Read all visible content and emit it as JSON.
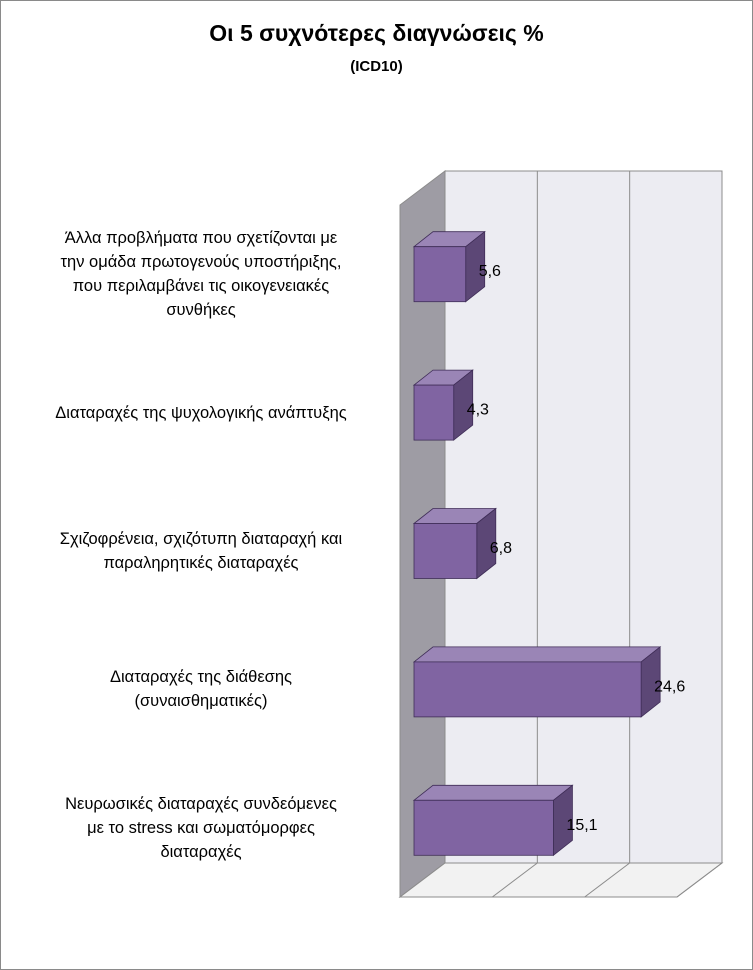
{
  "title": "Οι 5 συχνότερες διαγνώσεις %",
  "subtitle": "(ICD10)",
  "colors": {
    "bar_front": "#8064a2",
    "bar_top": "#9a85b6",
    "bar_side": "#5c4776",
    "bar_stroke": "#3f2d57",
    "back_wall": "#ececf2",
    "side_wall": "#9e9ca4",
    "floor": "#f2f2f2",
    "gridline": "#8c8c8c"
  },
  "chart_data": {
    "type": "bar",
    "orientation": "horizontal",
    "three_d": true,
    "title": "Οι 5 συχνότερες διαγνώσεις %",
    "subtitle": "(ICD10)",
    "categories": [
      "Άλλα προβλήματα που σχετίζονται με την ομάδα πρωτογενούς υποστήριξης, που περιλαμβάνει τις οικογενειακές συνθήκες",
      "Διαταραχές της ψυχολογικής ανάπτυξης",
      "Σχιζοφρένεια, σχιζότυπη διαταραχή και παραληρητικές διαταραχές",
      "Διαταραχές της διάθεσης (συναισθηματικές)",
      "Νευρωσικές διαταραχές συνδεόμενες με το stress και σωματόμορφες διαταραχές"
    ],
    "category_lines": [
      [
        "Άλλα προβλήματα που σχετίζονται με",
        "την ομάδα πρωτογενούς υποστήριξης,",
        "που περιλαμβάνει τις οικογενειακές",
        "συνθήκες"
      ],
      [
        "Διαταραχές της ψυχολογικής ανάπτυξης"
      ],
      [
        "Σχιζοφρένεια, σχιζότυπη διαταραχή και",
        "παραληρητικές διαταραχές"
      ],
      [
        "Διαταραχές της διάθεσης",
        "(συναισθηματικές)"
      ],
      [
        "Νευρωσικές διαταραχές συνδεόμενες",
        "με το stress και σωματόμορφες",
        "διαταραχές"
      ]
    ],
    "values": [
      5.6,
      4.3,
      6.8,
      24.6,
      15.1
    ],
    "value_labels": [
      "5,6",
      "4,3",
      "6,8",
      "24,6",
      "15,1"
    ],
    "xlim": [
      0,
      30
    ],
    "x_gridlines": [
      10,
      20,
      30
    ],
    "x_tick_labels_shown": false,
    "grid": true,
    "legend": "none"
  }
}
